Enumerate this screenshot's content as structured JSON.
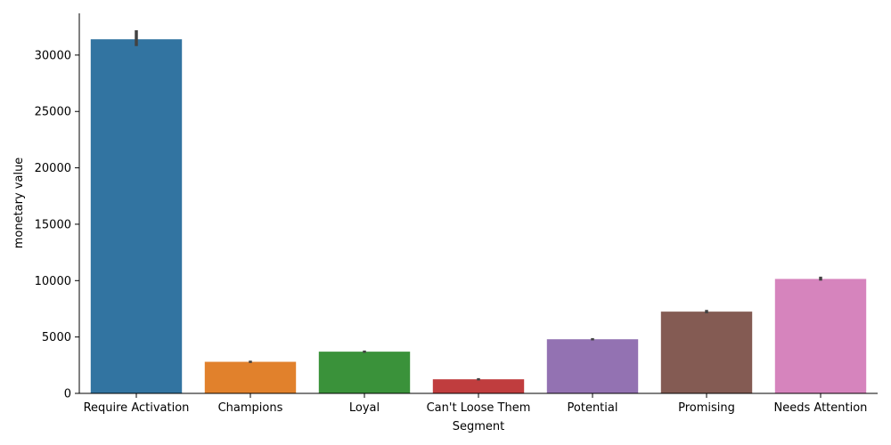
{
  "chart_data": {
    "type": "bar",
    "title": "",
    "xlabel": "Segment",
    "ylabel": "monetary value",
    "categories": [
      "Require Activation",
      "Champions",
      "Loyal",
      "Can't Loose Them",
      "Potential",
      "Promising",
      "Needs Attention"
    ],
    "values": [
      31400,
      2800,
      3700,
      1250,
      4800,
      7250,
      10150
    ],
    "error_low": [
      30800,
      2700,
      3600,
      1150,
      4700,
      7100,
      10000
    ],
    "error_high": [
      32200,
      2900,
      3800,
      1350,
      4900,
      7400,
      10350
    ],
    "colors": [
      "#3274a1",
      "#e1812c",
      "#3a923a",
      "#c03d3e",
      "#9372b2",
      "#845b53",
      "#d684bd"
    ],
    "error_color": "#424242",
    "yticks": [
      0,
      5000,
      10000,
      15000,
      20000,
      25000,
      30000
    ],
    "ylim": [
      0,
      33700
    ],
    "grid": false,
    "legend": "none"
  }
}
